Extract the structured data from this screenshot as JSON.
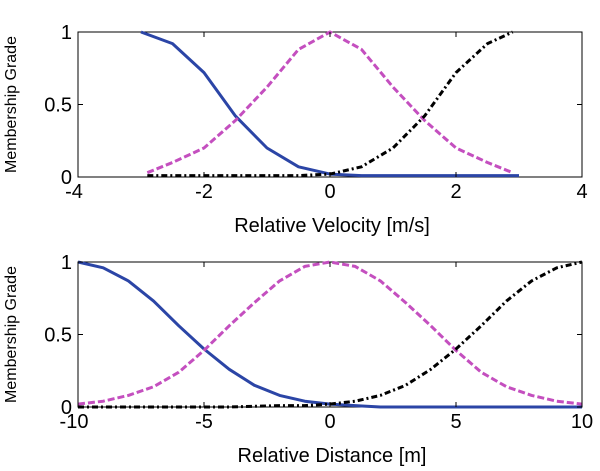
{
  "chart_data": [
    {
      "type": "line",
      "xlabel": "Relative Velocity [m/s]",
      "ylabel": "Membership Grade",
      "xlim": [
        -4,
        4
      ],
      "ylim": [
        0,
        1
      ],
      "xticks": [
        "-4",
        "-2",
        "0",
        "2",
        "4"
      ],
      "yticks": [
        "0",
        "0.5",
        "1"
      ],
      "grid": false,
      "series": [
        {
          "style": "solid",
          "color": "#2b45a6",
          "x": [
            -3,
            -2.5,
            -2,
            -1.5,
            -1,
            -0.5,
            0,
            0.5,
            1,
            2,
            3
          ],
          "y": [
            1,
            0.92,
            0.72,
            0.42,
            0.2,
            0.07,
            0.02,
            0.01,
            0.01,
            0.01,
            0.01
          ]
        },
        {
          "style": "dashed",
          "color": "#c44fbf",
          "x": [
            -2.9,
            -2.5,
            -2,
            -1.5,
            -1,
            -0.5,
            0,
            0.5,
            1,
            1.5,
            2,
            2.5,
            2.9
          ],
          "y": [
            0.03,
            0.1,
            0.2,
            0.39,
            0.62,
            0.88,
            1,
            0.88,
            0.62,
            0.39,
            0.2,
            0.1,
            0.03
          ]
        },
        {
          "style": "dashdot",
          "color": "#000000",
          "x": [
            -2.9,
            -1,
            -0.5,
            0,
            0.5,
            1,
            1.5,
            2,
            2.5,
            2.9
          ],
          "y": [
            0.01,
            0.01,
            0.01,
            0.02,
            0.07,
            0.2,
            0.42,
            0.72,
            0.92,
            1
          ]
        }
      ]
    },
    {
      "type": "line",
      "xlabel": "Relative Distance [m]",
      "ylabel": "Membership Grade",
      "xlim": [
        -10,
        10
      ],
      "ylim": [
        0,
        1
      ],
      "xticks": [
        "-10",
        "-5",
        "0",
        "5",
        "10"
      ],
      "yticks": [
        "0",
        "0.5",
        "1"
      ],
      "grid": false,
      "series": [
        {
          "style": "solid",
          "color": "#2b45a6",
          "x": [
            -10,
            -9,
            -8,
            -7,
            -6,
            -5,
            -4,
            -3,
            -2,
            -1,
            0,
            1,
            2,
            4,
            6,
            8,
            10
          ],
          "y": [
            1,
            0.96,
            0.87,
            0.73,
            0.56,
            0.4,
            0.26,
            0.15,
            0.08,
            0.04,
            0.02,
            0.01,
            0,
            0,
            0,
            0,
            0
          ]
        },
        {
          "style": "dashed",
          "color": "#c44fbf",
          "x": [
            -10,
            -9,
            -8,
            -7,
            -6,
            -5,
            -4,
            -3,
            -2,
            -1,
            0,
            1,
            2,
            3,
            4,
            5,
            6,
            7,
            8,
            9,
            10
          ],
          "y": [
            0.02,
            0.04,
            0.08,
            0.14,
            0.24,
            0.39,
            0.56,
            0.72,
            0.87,
            0.97,
            1,
            0.97,
            0.87,
            0.72,
            0.56,
            0.39,
            0.24,
            0.14,
            0.08,
            0.04,
            0.02
          ]
        },
        {
          "style": "dashdot",
          "color": "#000000",
          "x": [
            -10,
            -4,
            -2,
            -1,
            0,
            1,
            2,
            3,
            4,
            5,
            6,
            7,
            8,
            9,
            10
          ],
          "y": [
            0,
            0,
            0.01,
            0.01,
            0.02,
            0.04,
            0.08,
            0.15,
            0.26,
            0.4,
            0.56,
            0.73,
            0.87,
            0.96,
            1
          ]
        }
      ]
    }
  ]
}
